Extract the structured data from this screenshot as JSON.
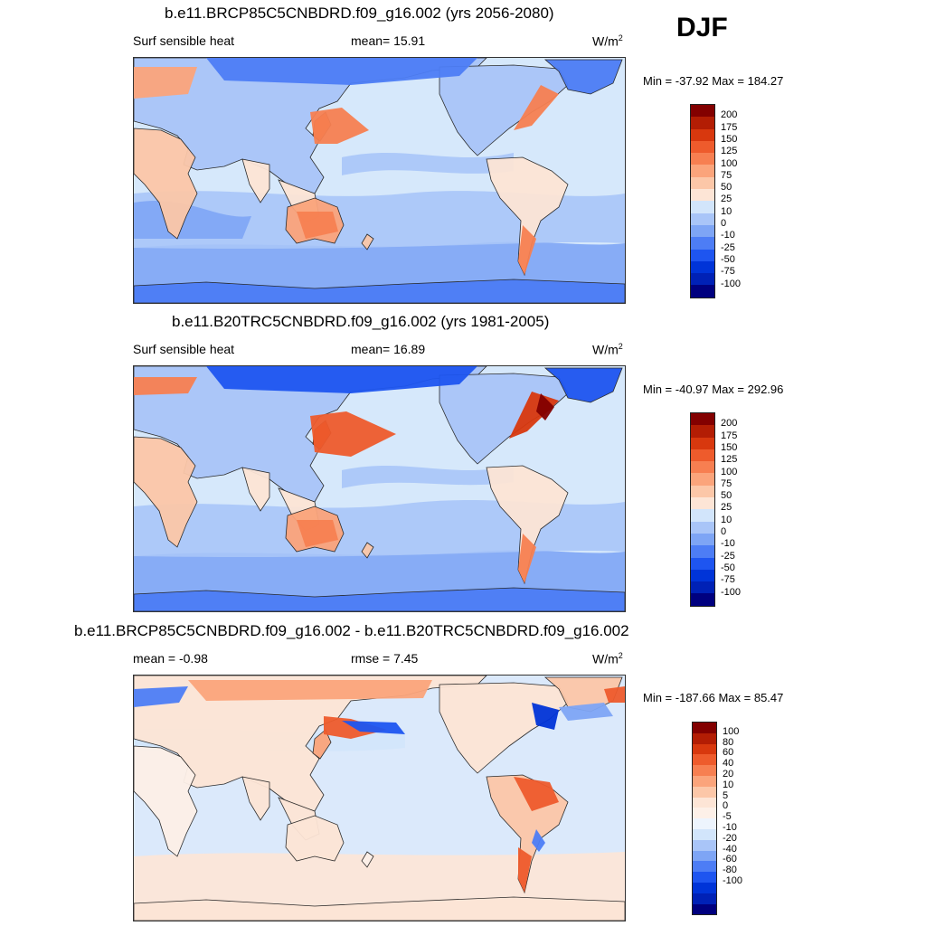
{
  "season": "DJF",
  "colors": {
    "abs_scale": [
      "#00007f",
      "#0021b6",
      "#0034d8",
      "#1e55f0",
      "#4d7df5",
      "#7ea5f5",
      "#a9c5f8",
      "#d2e5fb",
      "#fde5d6",
      "#fcc7a8",
      "#fba47b",
      "#f77f51",
      "#ee5b2c",
      "#d8380e",
      "#b31d04",
      "#830000"
    ],
    "diff_scale": [
      "#00007f",
      "#0021b6",
      "#0034d8",
      "#1e55f0",
      "#4d7df5",
      "#7ea5f5",
      "#a9c5f8",
      "#d2e5fb",
      "#edf4fd",
      "#fdf0e8",
      "#fde5d6",
      "#fcc7a8",
      "#fba47b",
      "#f77f51",
      "#ee5b2c",
      "#d8380e",
      "#b31d04",
      "#830000"
    ],
    "ocean_abs": "#d6e8fb",
    "ocean_diff": "#dbe9fb",
    "land_warm": "#fbd3bc"
  },
  "panels": [
    {
      "title": "b.e11.BRCP85C5CNBDRD.f09_g16.002 (yrs 2056-2080)",
      "left_label": "Surf sensible heat",
      "mid_label": "mean=  15.91",
      "units": "W/m",
      "units_sup": "2",
      "minmax": "Min = -37.92 Max = 184.27",
      "cb_labels": [
        "200",
        "175",
        "150",
        "125",
        "100",
        "75",
        "50",
        "25",
        "10",
        "0",
        "-10",
        "-25",
        "-50",
        "-75",
        "-100"
      ]
    },
    {
      "title": "b.e11.B20TRC5CNBDRD.f09_g16.002 (yrs 1981-2005)",
      "left_label": "Surf sensible heat",
      "mid_label": "mean=  16.89",
      "units": "W/m",
      "units_sup": "2",
      "minmax": "Min = -40.97 Max = 292.96",
      "cb_labels": [
        "200",
        "175",
        "150",
        "125",
        "100",
        "75",
        "50",
        "25",
        "10",
        "0",
        "-10",
        "-25",
        "-50",
        "-75",
        "-100"
      ]
    },
    {
      "title": "b.e11.BRCP85C5CNBDRD.f09_g16.002 - b.e11.B20TRC5CNBDRD.f09_g16.002",
      "left_label": "mean =  -0.98",
      "mid_label": "rmse =   7.45",
      "units": "W/m",
      "units_sup": "2",
      "minmax": "Min = -187.66 Max =  85.47",
      "cb_labels": [
        "100",
        "80",
        "60",
        "40",
        "20",
        "10",
        "5",
        "0",
        "-5",
        "-10",
        "-20",
        "-40",
        "-60",
        "-80",
        "-100"
      ]
    }
  ]
}
